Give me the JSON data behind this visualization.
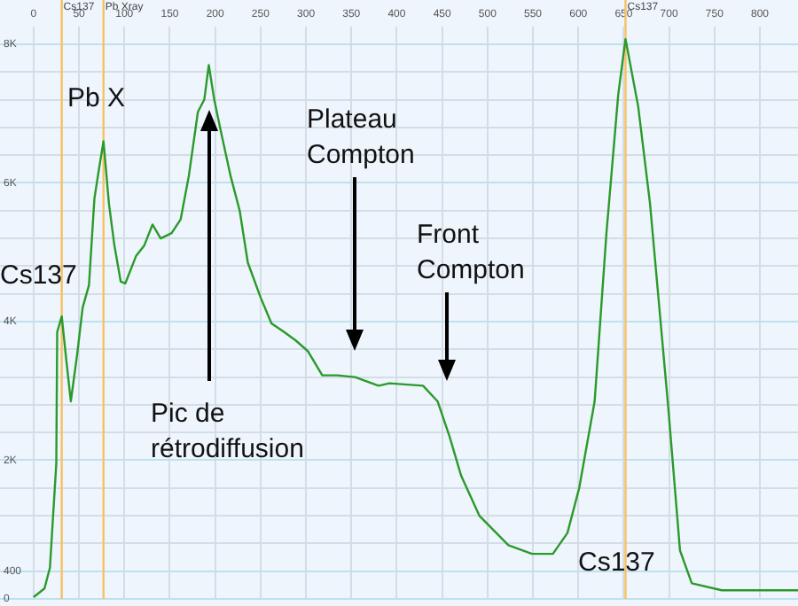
{
  "chart_data": {
    "type": "line",
    "x": [
      0,
      12,
      18,
      25,
      26,
      31,
      36,
      41,
      48,
      54,
      61,
      67,
      72,
      77,
      83,
      89,
      96,
      101,
      113,
      122,
      131,
      140,
      152,
      162,
      171,
      181,
      188,
      193,
      199,
      207,
      217,
      227,
      236,
      250,
      262,
      276,
      289,
      302,
      318,
      334,
      354,
      380,
      392,
      429,
      445,
      458,
      471,
      491,
      523,
      549,
      572,
      588,
      601,
      618,
      631,
      644,
      652,
      666,
      679,
      699,
      712,
      725,
      758,
      842
    ],
    "series": [
      {
        "color": "#2a9a2a",
        "values": [
          25,
          150,
          450,
          1950,
          3850,
          4075,
          3450,
          2850,
          3525,
          4200,
          4525,
          5775,
          6200,
          6600,
          5700,
          5100,
          4575,
          4550,
          4950,
          5100,
          5400,
          5200,
          5275,
          5475,
          6100,
          7025,
          7200,
          7700,
          7200,
          6700,
          6100,
          5600,
          4850,
          4350,
          3975,
          3850,
          3725,
          3575,
          3225,
          3225,
          3200,
          3075,
          3110,
          3075,
          2850,
          2350,
          1775,
          1200,
          775,
          650,
          650,
          950,
          1600,
          2850,
          5275,
          7275,
          8075,
          7100,
          5700,
          2775,
          700,
          225,
          125,
          125
        ]
      }
    ],
    "xlim": [
      -37,
      842
    ],
    "ylim": [
      0,
      8250
    ],
    "xticks": [
      0,
      50,
      100,
      150,
      200,
      250,
      300,
      350,
      400,
      450,
      500,
      550,
      600,
      650,
      700,
      750,
      800
    ],
    "yticks": [
      0,
      400,
      {
        "value": 800,
        "label": null
      },
      {
        "value": 1200,
        "label": null
      },
      {
        "value": 1600,
        "label": null
      },
      {
        "value": 2000,
        "label": "2K"
      },
      {
        "value": 2400,
        "label": null
      },
      {
        "value": 2800,
        "label": null
      },
      {
        "value": 3200,
        "label": null
      },
      {
        "value": 3600,
        "label": null
      },
      {
        "value": 4000,
        "label": "4K"
      },
      {
        "value": 4400,
        "label": null
      },
      {
        "value": 4800,
        "label": null
      },
      {
        "value": 5200,
        "label": null
      },
      {
        "value": 5600,
        "label": null
      },
      {
        "value": 6000,
        "label": "6K"
      },
      {
        "value": 6400,
        "label": null
      },
      {
        "value": 6800,
        "label": null
      },
      {
        "value": 7200,
        "label": null
      },
      {
        "value": 7600,
        "label": null
      },
      {
        "value": 8000,
        "label": "8K"
      }
    ],
    "grid": true,
    "legend": false,
    "marker": "none",
    "line_style": "solid",
    "ref_lines": [
      {
        "axis": "x",
        "value": 31,
        "label": "Cs137",
        "color": "#f8c060"
      },
      {
        "axis": "x",
        "value": 77,
        "label": "Pb Xray",
        "color": "#f8c060"
      },
      {
        "axis": "x",
        "value": 652,
        "label": "Cs137",
        "color": "#f8c060"
      }
    ],
    "annotations": [
      "Pb X",
      "Cs137",
      "Pic de\nrétrodiffusion",
      "Plateau\nCompton",
      "Front\nCompton",
      "Cs137"
    ]
  }
}
